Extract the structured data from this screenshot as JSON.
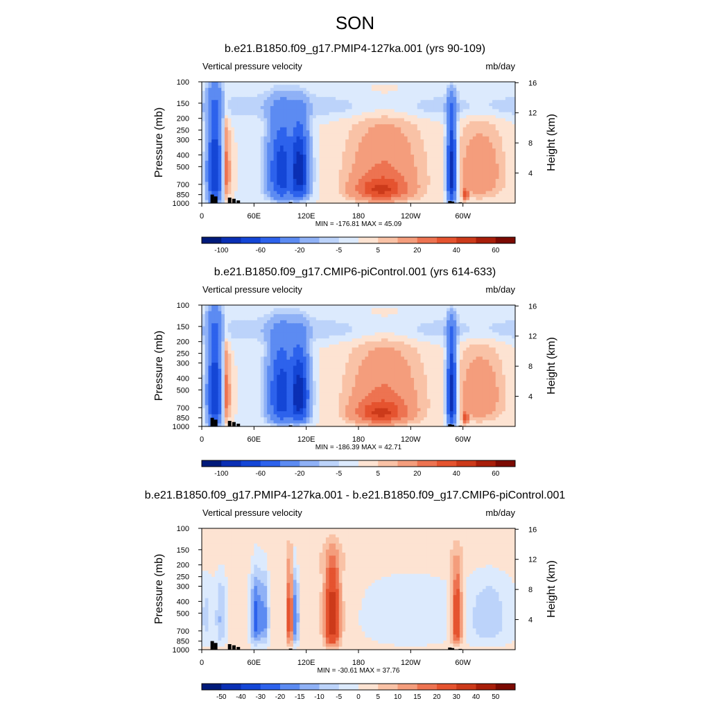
{
  "page_title": "SON",
  "colors": {
    "filled_contour_palette": [
      "#001a7a",
      "#0a2fb4",
      "#1446d6",
      "#2d62ec",
      "#5c8bf2",
      "#8fb1f6",
      "#bcd3fa",
      "#dceafd",
      "#fde3d2",
      "#f9c2a6",
      "#f49d7c",
      "#ed7351",
      "#e5532f",
      "#cc3a1a",
      "#a81e0a",
      "#7b0a02"
    ],
    "topography": "#000000"
  },
  "panels": [
    {
      "title": "b.e21.B1850.f09_g17.PMIP4-127ka.001 (yrs 90-109)",
      "left_label": "Vertical pressure velocity",
      "right_label": "mb/day",
      "minmax": "MIN = -176.81  MAX =  45.09",
      "colorbar": [
        "-100",
        "-60",
        "-20",
        "-5",
        "5",
        "20",
        "40",
        "60"
      ]
    },
    {
      "title": "b.e21.B1850.f09_g17.CMIP6-piControl.001 (yrs 614-633)",
      "left_label": "Vertical pressure velocity",
      "right_label": "mb/day",
      "minmax": "MIN = -186.39  MAX =  42.71",
      "colorbar": [
        "-100",
        "-60",
        "-20",
        "-5",
        "5",
        "20",
        "40",
        "60"
      ]
    },
    {
      "title": "b.e21.B1850.f09_g17.PMIP4-127ka.001 - b.e21.B1850.f09_g17.CMIP6-piControl.001",
      "left_label": "Vertical pressure velocity",
      "right_label": "mb/day",
      "minmax": "MIN = -30.61  MAX =  37.76",
      "colorbar": [
        "-50",
        "-40",
        "-30",
        "-20",
        "-15",
        "-10",
        "-5",
        "0",
        "5",
        "10",
        "15",
        "20",
        "30",
        "40",
        "50"
      ]
    }
  ],
  "chart_data": [
    {
      "type": "heatmap",
      "title": "b.e21.B1850.f09_g17.PMIP4-127ka.001 (yrs 90-109)",
      "variable": "Vertical pressure velocity",
      "units": "mb/day",
      "xlabel": "",
      "ylabel": "Pressure (mb)",
      "ylabel_right": "Height (km)",
      "x_ticks": [
        "0",
        "60E",
        "120E",
        "180",
        "120W",
        "60W"
      ],
      "x_tick_values": [
        0,
        60,
        120,
        180,
        240,
        300
      ],
      "xlim": [
        0,
        360
      ],
      "y_ticks": [
        "100",
        "150",
        "200",
        "250",
        "300",
        "400",
        "500",
        "700",
        "850",
        "1000"
      ],
      "y_tick_values": [
        100,
        150,
        200,
        250,
        300,
        400,
        500,
        700,
        850,
        1000
      ],
      "ylim": [
        1000,
        100
      ],
      "y_scale": "log",
      "right_ticks": [
        "4",
        "8",
        "12",
        "16"
      ],
      "right_tick_values": [
        4,
        8,
        12,
        16
      ],
      "min": -176.81,
      "max": 45.09,
      "contour_levels": [
        -100,
        -80,
        -60,
        -40,
        -20,
        -10,
        -5,
        0,
        5,
        10,
        20,
        30,
        40,
        50,
        60
      ],
      "colorbar_labels": [
        "-100",
        "-60",
        "-20",
        "-5",
        "5",
        "20",
        "40",
        "60"
      ]
    },
    {
      "type": "heatmap",
      "title": "b.e21.B1850.f09_g17.CMIP6-piControl.001 (yrs 614-633)",
      "variable": "Vertical pressure velocity",
      "units": "mb/day",
      "xlabel": "",
      "ylabel": "Pressure (mb)",
      "ylabel_right": "Height (km)",
      "x_ticks": [
        "0",
        "60E",
        "120E",
        "180",
        "120W",
        "60W"
      ],
      "x_tick_values": [
        0,
        60,
        120,
        180,
        240,
        300
      ],
      "xlim": [
        0,
        360
      ],
      "y_ticks": [
        "100",
        "150",
        "200",
        "250",
        "300",
        "400",
        "500",
        "700",
        "850",
        "1000"
      ],
      "y_tick_values": [
        100,
        150,
        200,
        250,
        300,
        400,
        500,
        700,
        850,
        1000
      ],
      "ylim": [
        1000,
        100
      ],
      "y_scale": "log",
      "right_ticks": [
        "4",
        "8",
        "12",
        "16"
      ],
      "right_tick_values": [
        4,
        8,
        12,
        16
      ],
      "min": -186.39,
      "max": 42.71,
      "contour_levels": [
        -100,
        -80,
        -60,
        -40,
        -20,
        -10,
        -5,
        0,
        5,
        10,
        20,
        30,
        40,
        50,
        60
      ],
      "colorbar_labels": [
        "-100",
        "-60",
        "-20",
        "-5",
        "5",
        "20",
        "40",
        "60"
      ]
    },
    {
      "type": "heatmap",
      "title": "b.e21.B1850.f09_g17.PMIP4-127ka.001 - b.e21.B1850.f09_g17.CMIP6-piControl.001",
      "variable": "Vertical pressure velocity",
      "units": "mb/day",
      "xlabel": "",
      "ylabel": "Pressure (mb)",
      "ylabel_right": "Height (km)",
      "x_ticks": [
        "0",
        "60E",
        "120E",
        "180",
        "120W",
        "60W"
      ],
      "x_tick_values": [
        0,
        60,
        120,
        180,
        240,
        300
      ],
      "xlim": [
        0,
        360
      ],
      "y_ticks": [
        "100",
        "150",
        "200",
        "250",
        "300",
        "400",
        "500",
        "700",
        "850",
        "1000"
      ],
      "y_tick_values": [
        100,
        150,
        200,
        250,
        300,
        400,
        500,
        700,
        850,
        1000
      ],
      "ylim": [
        1000,
        100
      ],
      "y_scale": "log",
      "right_ticks": [
        "4",
        "8",
        "12",
        "16"
      ],
      "right_tick_values": [
        4,
        8,
        12,
        16
      ],
      "min": -30.61,
      "max": 37.76,
      "contour_levels": [
        -50,
        -40,
        -30,
        -20,
        -15,
        -10,
        -5,
        0,
        5,
        10,
        15,
        20,
        30,
        40,
        50
      ],
      "colorbar_labels": [
        "-50",
        "-40",
        "-30",
        "-20",
        "-15",
        "-10",
        "-5",
        "0",
        "5",
        "10",
        "15",
        "20",
        "30",
        "40",
        "50"
      ]
    }
  ]
}
